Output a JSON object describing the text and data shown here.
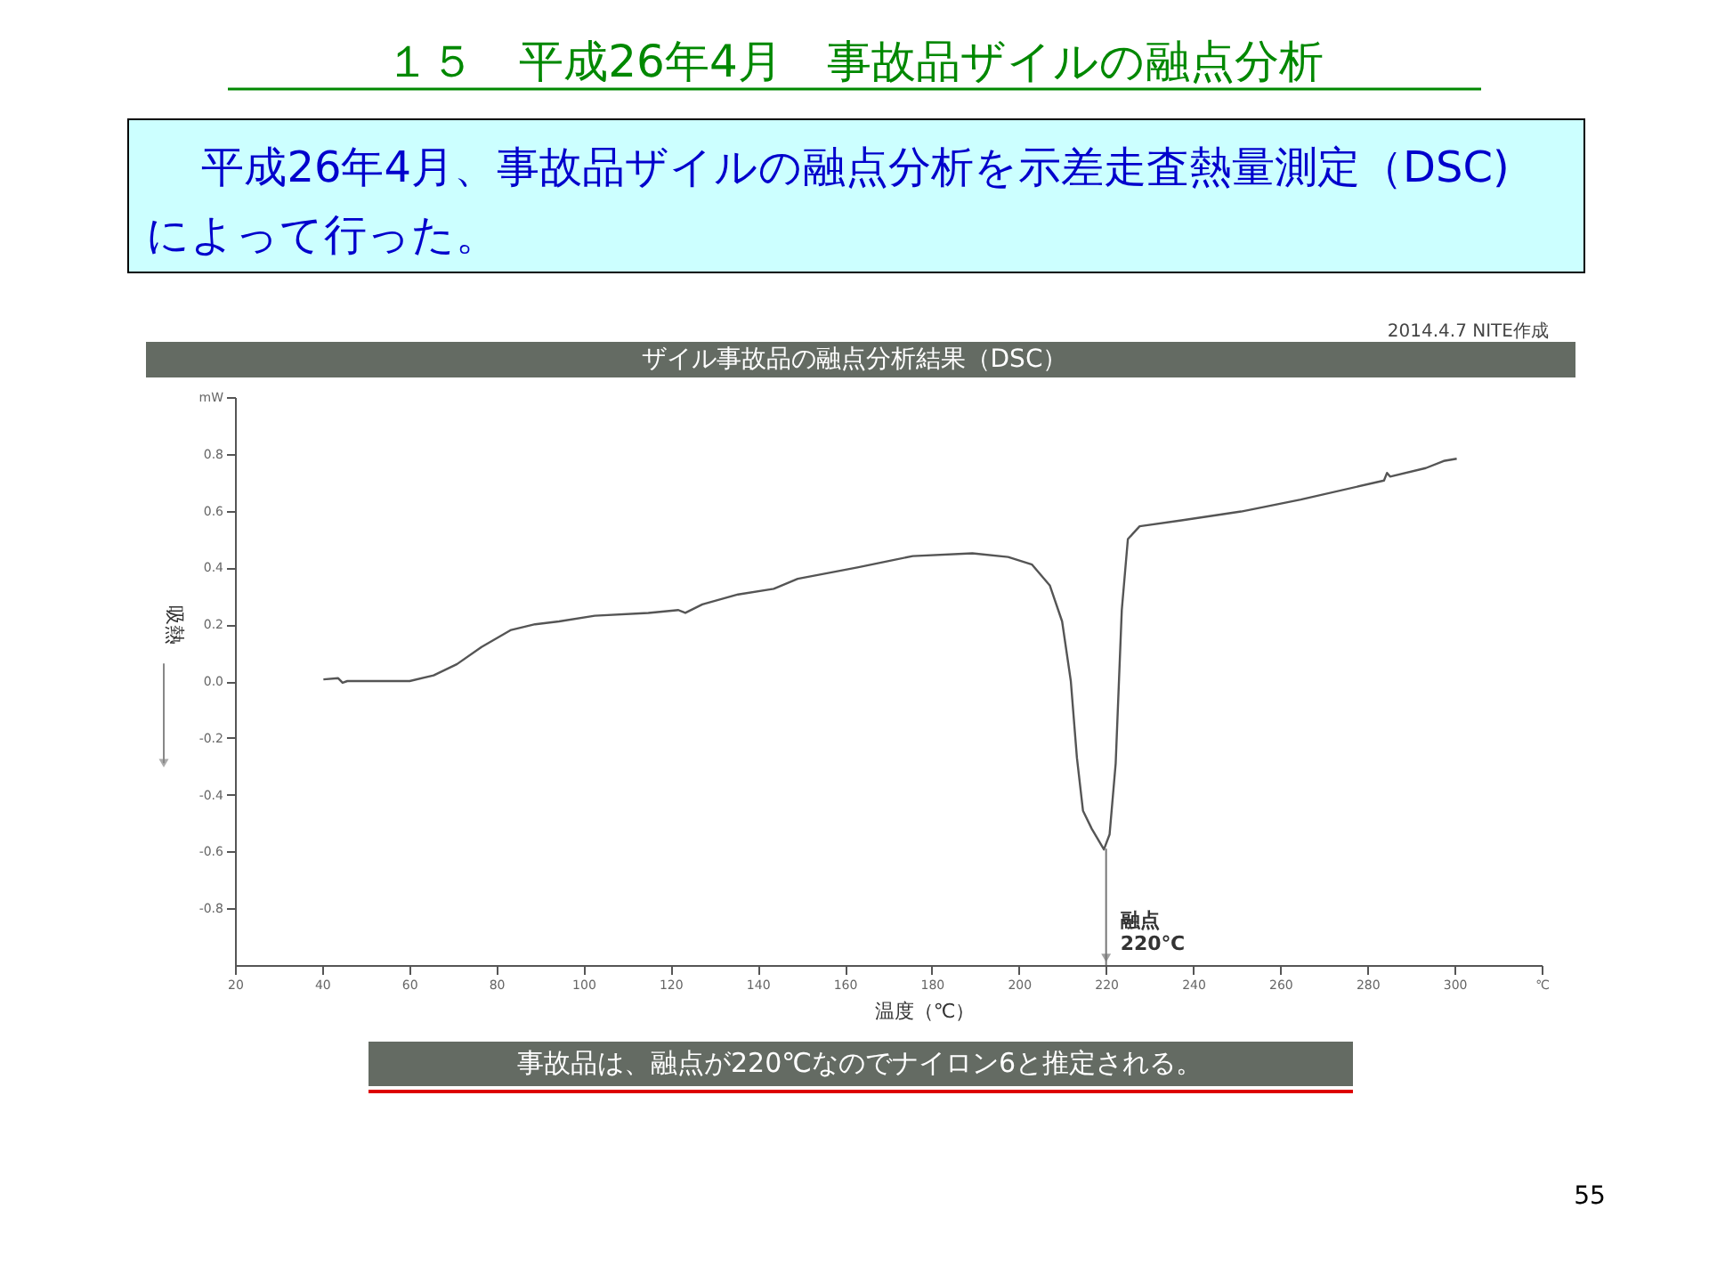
{
  "chart_data": {
    "type": "line",
    "title": "１５　平成26年4月　事故品ザイルの融点分析",
    "subtitle": "平成26年4月、事故品ザイルの融点分析を示差走査熱量測定（DSC)によって行った。",
    "xlabel": "温度（℃）",
    "ylabel": "吸熱",
    "annotations": [
      "ザイル事故品の融点分析結果（DSC）",
      "2014.4.7 NITE作成",
      "事故品は、融点が220℃なのでナイロン6と推定される。",
      "55",
      {
        "text": "融点 220℃",
        "x": 220,
        "y": -0.59
      }
    ],
    "series": [
      {
        "color": "#555555",
        "x": [
          40.3,
          43.7,
          44.7,
          45.8,
          60.1,
          65.6,
          71,
          76.6,
          83.4,
          88.9,
          94.4,
          102.6,
          114.9,
          121.8,
          123.4,
          127.3,
          135.5,
          143.7,
          149.2,
          162.9,
          171.1,
          175.6,
          189.3,
          197.5,
          203,
          207.1,
          209.9,
          211.9,
          213.3,
          214.7,
          216.7,
          219.5,
          220.8,
          222.2,
          223.6,
          225,
          227.7,
          237.3,
          251,
          264.7,
          283.8,
          284.5,
          285.2,
          293.4,
          297.5,
          300.5
        ],
        "values": [
          0.006,
          0.01,
          -0.006,
          0.0,
          0.0,
          0.02,
          0.06,
          0.12,
          0.18,
          0.2,
          0.21,
          0.23,
          0.24,
          0.25,
          0.24,
          0.27,
          0.305,
          0.325,
          0.36,
          0.4,
          0.426,
          0.44,
          0.45,
          0.437,
          0.41,
          0.336,
          0.21,
          0.0,
          -0.27,
          -0.457,
          -0.52,
          -0.593,
          -0.54,
          -0.29,
          0.25,
          0.5,
          0.545,
          0.566,
          0.597,
          0.639,
          0.706,
          0.733,
          0.72,
          0.75,
          0.775,
          0.783
        ]
      }
    ],
    "xlim": [
      20,
      320
    ],
    "xticks": [
      20,
      40,
      60,
      80,
      100,
      120,
      140,
      160,
      180,
      200,
      220,
      240,
      260,
      280,
      300,
      {
        "value": 320,
        "label": "℃"
      }
    ],
    "ylim": [
      -1,
      1
    ],
    "yticks": [
      -0.8,
      -0.6,
      -0.4,
      -0.2,
      {
        "value": 0,
        "label": "0.0"
      },
      0.2,
      0.4,
      0.6,
      0.8,
      {
        "value": 1,
        "label": "mW"
      }
    ],
    "grid": false,
    "marker": "none",
    "line_style": "solid"
  }
}
